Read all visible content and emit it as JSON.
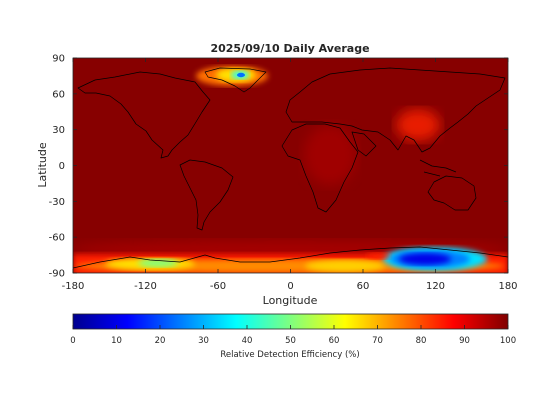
{
  "chart_data": {
    "type": "heatmap",
    "title": "2025/09/10 Daily Average",
    "xlabel": "Longitude",
    "ylabel": "Latitude",
    "xlim": [
      -180,
      180
    ],
    "ylim": [
      -90,
      90
    ],
    "x_ticks": [
      -180,
      -120,
      -60,
      0,
      60,
      120,
      180
    ],
    "y_ticks": [
      90,
      60,
      30,
      0,
      -30,
      -60,
      -90
    ],
    "colorbar": {
      "label": "Relative Detection Efficiency (%)",
      "range": [
        0,
        100
      ],
      "ticks": [
        0,
        10,
        20,
        30,
        40,
        50,
        60,
        70,
        80,
        90,
        100
      ],
      "colormap": "jet"
    },
    "background_value": 100,
    "features": [
      {
        "region": "Greenland interior",
        "lon": -40,
        "lat": 74,
        "min_value": 35
      },
      {
        "region": "East Antarctica",
        "lon": 120,
        "lat": -79,
        "min_value": 15
      },
      {
        "region": "West Antarctica",
        "lon": -110,
        "lat": -82,
        "min_value": 50
      },
      {
        "region": "Antarctic coast band",
        "lon_range": [
          -180,
          180
        ],
        "lat_range": [
          -90,
          -70
        ],
        "approx_value": 80
      },
      {
        "region": "Tibetan Plateau",
        "lon": 85,
        "lat": 33,
        "approx_value": 90
      }
    ]
  }
}
